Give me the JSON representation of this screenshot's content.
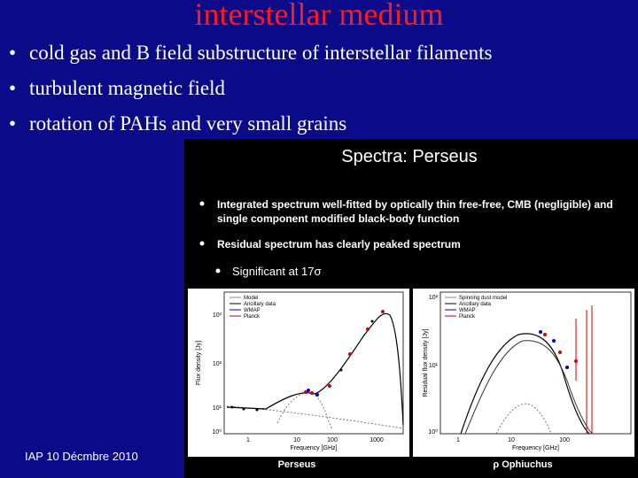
{
  "slide": {
    "title": "interstellar medium",
    "bullets": [
      "cold gas and B field substructure of interstellar filaments",
      "turbulent magnetic field",
      "rotation of PAHs and very small grains"
    ],
    "footer": "IAP 10 Décmbre 2010"
  },
  "figure": {
    "title": "Spectra: Perseus",
    "bullets": [
      [
        "Integrated spectrum well-fitted by optically thin free-free, CMB (negligible) and",
        "single component modified black-body function"
      ],
      [
        "Residual spectrum has clearly peaked spectrum"
      ]
    ],
    "sub_bullets": [
      "Significant at 17σ"
    ],
    "panels": [
      {
        "caption": "Perseus",
        "legend": [
          "Model",
          "Ancillary data",
          "WMAP",
          "Planck"
        ],
        "x_label": "Frequency [GHz]",
        "y_label": "Flux density [Jy]",
        "x_ticks": [
          "1",
          "10",
          "100",
          "1000"
        ],
        "y_ticks": [
          "10⁰",
          "10¹",
          "10²",
          "10³"
        ]
      },
      {
        "caption": "ρ Ophiuchus",
        "legend": [
          "Spinning dust model",
          "Ancillary data",
          "WMAP",
          "Planck"
        ],
        "x_label": "Frequency [GHz]",
        "y_label": "Residual flux density [Jy]",
        "x_ticks": [
          "1",
          "10",
          "100"
        ],
        "y_ticks": [
          "10⁰",
          "10¹",
          "10²"
        ]
      }
    ]
  }
}
